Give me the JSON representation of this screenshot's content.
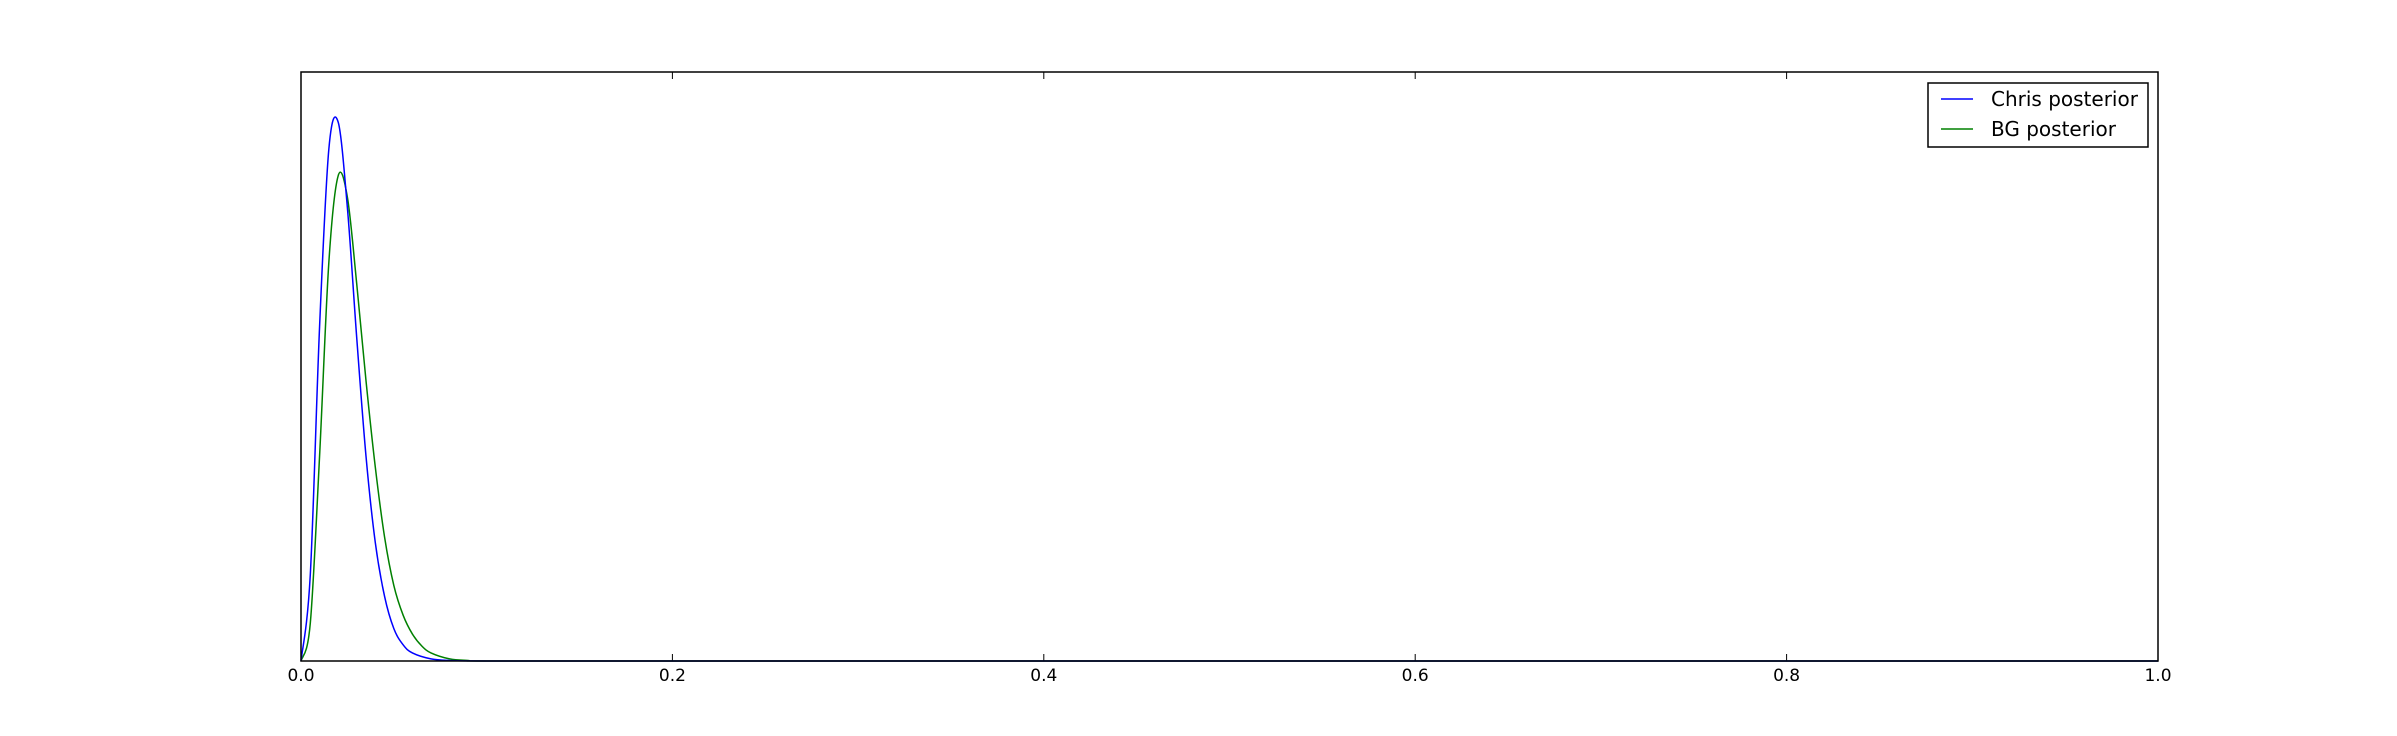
{
  "chart_data": {
    "type": "line",
    "title": "",
    "xlabel": "",
    "ylabel": "",
    "xlim": [
      0.0,
      1.0
    ],
    "xticks": [
      "0.0",
      "0.2",
      "0.4",
      "0.6",
      "0.8",
      "1.0"
    ],
    "yticks_visible": false,
    "grid": false,
    "legend_position": "top-right",
    "series": [
      {
        "name": "Chris posterior",
        "color": "#0000ff",
        "x": [
          0.0,
          0.005,
          0.01,
          0.015,
          0.02,
          0.025,
          0.03,
          0.035,
          0.04,
          0.045,
          0.05,
          0.055,
          0.06,
          0.07,
          0.08,
          0.1,
          0.2,
          0.4,
          0.6,
          0.8,
          1.0
        ],
        "y": [
          0.0,
          0.16,
          0.62,
          0.95,
          1.0,
          0.84,
          0.6,
          0.38,
          0.22,
          0.12,
          0.06,
          0.03,
          0.015,
          0.004,
          0.001,
          0.0,
          0.0,
          0.0,
          0.0,
          0.0,
          0.0
        ]
      },
      {
        "name": "BG posterior",
        "color": "#008000",
        "x": [
          0.0,
          0.005,
          0.01,
          0.015,
          0.02,
          0.025,
          0.03,
          0.035,
          0.04,
          0.045,
          0.05,
          0.055,
          0.06,
          0.065,
          0.07,
          0.08,
          0.09,
          0.1,
          0.2,
          0.4,
          0.6,
          0.8,
          1.0
        ],
        "y": [
          0.0,
          0.07,
          0.38,
          0.74,
          0.9,
          0.86,
          0.7,
          0.52,
          0.36,
          0.23,
          0.14,
          0.085,
          0.05,
          0.028,
          0.015,
          0.004,
          0.001,
          0.0,
          0.0,
          0.0,
          0.0,
          0.0,
          0.0
        ]
      }
    ]
  }
}
